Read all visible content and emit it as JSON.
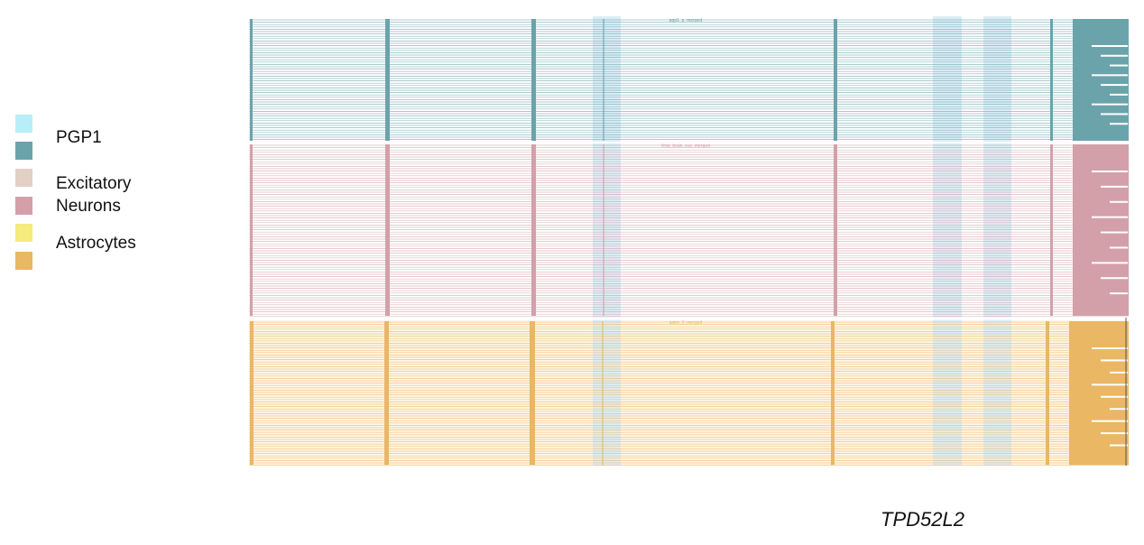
{
  "legend": [
    {
      "label": "PGP1",
      "light": "#b8eef8",
      "dark": "#6ba3ab"
    },
    {
      "label": "Excitatory\nNeurons",
      "label_lines": [
        "Excitatory",
        "Neurons"
      ],
      "light": "#e2cfc6",
      "dark": "#d3a0aa"
    },
    {
      "label": "Astrocytes",
      "light": "#f4ec7c",
      "dark": "#eab764"
    }
  ],
  "tracks": [
    {
      "name": "pgp1",
      "caption": "pgp1_p_merged",
      "color": "#6ba3ab",
      "bg": "#ffffff"
    },
    {
      "name": "excitatory",
      "caption": "fetal_brain_exc_merged",
      "color": "#d3a0aa",
      "bg": "#ffffff"
    },
    {
      "name": "astrocytes",
      "caption": "astro_2_merged",
      "color": "#eab764",
      "bg": "#fff6e8"
    }
  ],
  "highlight_color": "#d6ebf6",
  "gene": "TPD52L2"
}
